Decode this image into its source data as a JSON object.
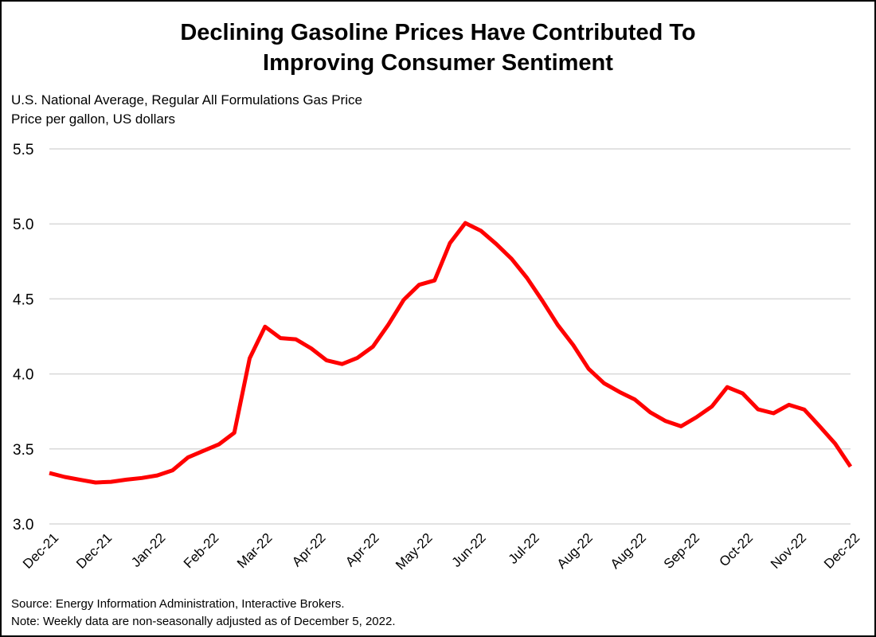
{
  "chart_data": {
    "type": "line",
    "title": [
      "Declining Gasoline Prices Have Contributed To",
      "Improving Consumer Sentiment"
    ],
    "subtitle": [
      "U.S. National Average, Regular All Formulations Gas Price",
      "Price per gallon, US dollars"
    ],
    "ylim": [
      3.0,
      5.5
    ],
    "yticks": [
      "3.0",
      "3.5",
      "4.0",
      "4.5",
      "5.0",
      "5.5"
    ],
    "xtick_labels": [
      "Dec-21",
      "Dec-21",
      "Jan-22",
      "Feb-22",
      "Mar-22",
      "Apr-22",
      "Apr-22",
      "May-22",
      "Jun-22",
      "Jul-22",
      "Aug-22",
      "Aug-22",
      "Sep-22",
      "Oct-22",
      "Nov-22",
      "Dec-22"
    ],
    "grid": true,
    "line_color": "#ff0000",
    "series": [
      {
        "values": [
          3.339,
          3.313,
          3.294,
          3.276,
          3.281,
          3.295,
          3.306,
          3.323,
          3.358,
          3.444,
          3.487,
          3.53,
          3.608,
          4.104,
          4.315,
          4.239,
          4.231,
          4.17,
          4.09,
          4.066,
          4.107,
          4.182,
          4.328,
          4.494,
          4.594,
          4.623,
          4.872,
          5.006,
          4.955,
          4.867,
          4.767,
          4.64,
          4.487,
          4.326,
          4.192,
          4.034,
          3.938,
          3.88,
          3.829,
          3.744,
          3.686,
          3.651,
          3.711,
          3.783,
          3.912,
          3.87,
          3.764,
          3.738,
          3.794,
          3.762,
          3.651,
          3.535,
          3.382
        ]
      }
    ],
    "source": "Source: Energy Information Administration, Interactive Brokers.",
    "note": "Note: Weekly data are non-seasonally adjusted as of December 5, 2022."
  }
}
